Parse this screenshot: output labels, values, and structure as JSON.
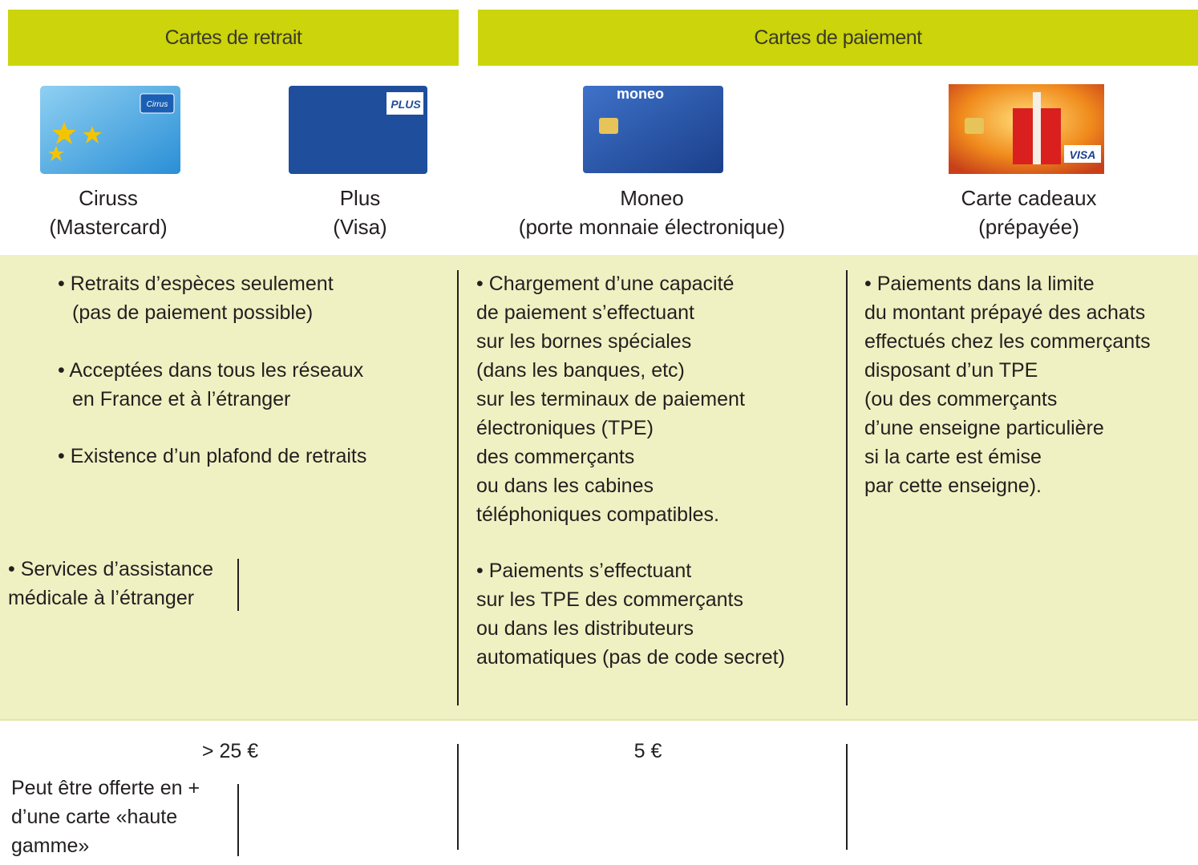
{
  "header": {
    "withdrawal": "Cartes de retrait",
    "payment": "Cartes de paiement"
  },
  "cards": [
    {
      "name": "Ciruss",
      "detail": "(Mastercard)",
      "logo": "Cirrus"
    },
    {
      "name": "Plus",
      "detail": "(Visa)",
      "logo": "PLUS"
    },
    {
      "name": "Moneo",
      "detail": "(porte monnaie électronique)",
      "logo": "moneo"
    },
    {
      "name": "Carte cadeaux",
      "detail": "(prépayée)",
      "logo": "VISA"
    }
  ],
  "features": {
    "withdrawal": [
      [
        "• Retraits d’espèces seulement",
        "(pas de paiement possible)"
      ],
      [
        "• Acceptées dans tous les réseaux",
        "en France et à l’étranger"
      ],
      [
        "• Existence d’un plafond de retraits"
      ]
    ],
    "withdrawal_extra": [
      "• Services d’assistance",
      "médicale à l’étranger"
    ],
    "moneo": [
      [
        "• Chargement d’une capacité",
        "de paiement s’effectuant",
        "sur les bornes spéciales",
        "(dans les banques, etc)",
        "sur les terminaux de paiement",
        "électroniques (TPE)",
        "des commerçants",
        "ou dans les cabines",
        "téléphoniques compatibles."
      ],
      [
        "• Paiements s’effectuant",
        "sur les TPE des commerçants",
        "ou dans les distributeurs",
        "automatiques (pas de code secret)"
      ]
    ],
    "gift": [
      "• Paiements dans la limite",
      "du montant prépayé des achats",
      "effectués chez les commerçants",
      "disposant d’un TPE",
      "(ou des commerçants",
      "d’une enseigne particulière",
      "si la carte est émise",
      "par cette enseigne)."
    ]
  },
  "prices": {
    "withdrawal": "> 25 €",
    "withdrawal_note": [
      "Peut être offerte en +",
      "d’une carte «haute",
      "gamme»"
    ],
    "moneo": "5 €"
  }
}
